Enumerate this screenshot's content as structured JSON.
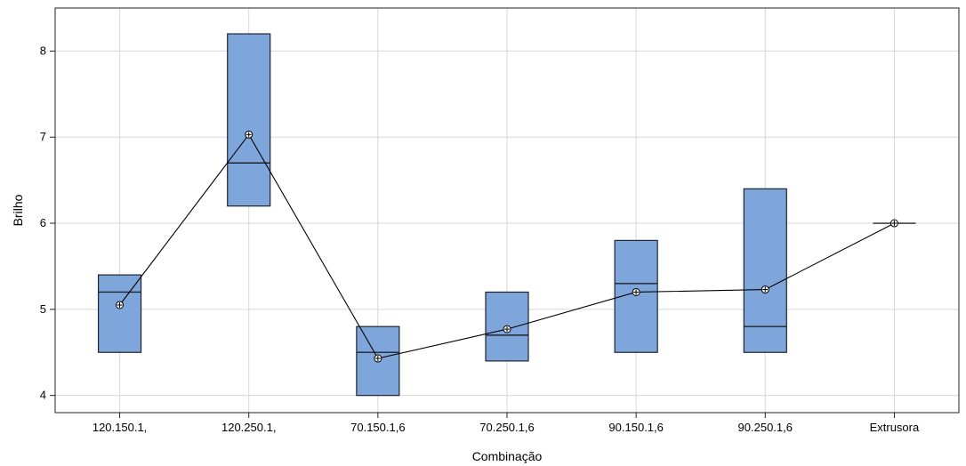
{
  "chart_data": {
    "type": "box",
    "xlabel": "Combinação",
    "ylabel": "Brilho",
    "categories": [
      "120.150.1,",
      "120.250.1,",
      "70.150.1,6",
      "70.250.1,6",
      "90.150.1,6",
      "90.250.1,6",
      "Extrusora"
    ],
    "ylim": [
      3.8,
      8.5
    ],
    "yticks": [
      4,
      5,
      6,
      7,
      8
    ],
    "grid": true,
    "legend": "none",
    "colors": {
      "box_fill": "#7ea6db",
      "box_stroke": "#1f2430",
      "grid": "#d7d7d7",
      "line": "#000000"
    },
    "boxes": [
      {
        "category": "120.150.1,",
        "q1": 4.5,
        "median": 5.2,
        "q3": 5.4,
        "mean": 5.05
      },
      {
        "category": "120.250.1,",
        "q1": 6.2,
        "median": 6.7,
        "q3": 8.2,
        "mean": 7.03
      },
      {
        "category": "70.150.1,6",
        "q1": 4.0,
        "median": 4.5,
        "q3": 4.8,
        "mean": 4.43
      },
      {
        "category": "70.250.1,6",
        "q1": 4.4,
        "median": 4.7,
        "q3": 5.2,
        "mean": 4.77
      },
      {
        "category": "90.150.1,6",
        "q1": 4.5,
        "median": 5.3,
        "q3": 5.8,
        "mean": 5.2
      },
      {
        "category": "90.250.1,6",
        "q1": 4.5,
        "median": 4.8,
        "q3": 6.4,
        "mean": 5.23
      },
      {
        "category": "Extrusora",
        "q1": 6.0,
        "median": 6.0,
        "q3": 6.0,
        "mean": 6.0
      }
    ]
  }
}
